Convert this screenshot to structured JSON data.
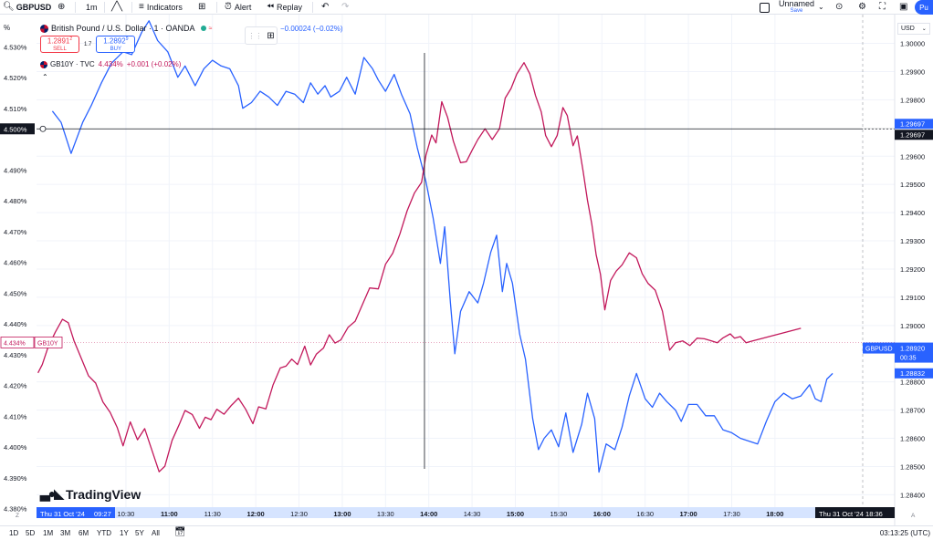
{
  "toolbar": {
    "symbol": "GBPUSD",
    "interval": "1m",
    "indicators_label": "Indicators",
    "alert_label": "Alert",
    "replay_label": "Replay",
    "layout_name": "Unnamed",
    "save_label": "Save",
    "publish_label": "Pu"
  },
  "legend": {
    "main_title": "British Pound / U.S. Dollar · 1 · OANDA",
    "sell_price": "1.2891",
    "sell_price_sup": "2",
    "sell_label": "SELL",
    "spread": "1.7",
    "buy_price": "1.2892",
    "buy_price_sup": "9",
    "buy_label": "BUY",
    "change_text": "−0.00024 (−0.02%)",
    "second_symbol": "GB10Y · TVC",
    "second_value": "4.434%",
    "second_change": "+0.001 (+0.02%)"
  },
  "left_scale_unit": "%",
  "right_scale_currency": "USD",
  "logo_text": "TradingView",
  "colors": {
    "usd_line": "#2962ff",
    "gb10y_line": "#c2185b",
    "crosshair": "#131722",
    "grid": "#f0f3fa"
  },
  "chart_data": {
    "type": "line",
    "left_axis": {
      "unit": "%",
      "ticks": [
        "4.530%",
        "4.520%",
        "4.510%",
        "4.490%",
        "4.480%",
        "4.470%",
        "4.460%",
        "4.450%",
        "4.440%",
        "4.430%",
        "4.420%",
        "4.410%",
        "4.400%",
        "4.390%",
        "4.380%"
      ],
      "tick_values": [
        4.53,
        4.52,
        4.51,
        4.49,
        4.48,
        4.47,
        4.46,
        4.45,
        4.44,
        4.43,
        4.42,
        4.41,
        4.4,
        4.39,
        4.38
      ],
      "range": [
        4.3805,
        4.5405
      ]
    },
    "right_axis": {
      "ticks": [
        "1.30000",
        "1.29900",
        "1.29800",
        "1.29600",
        "1.29500",
        "1.29400",
        "1.29300",
        "1.29200",
        "1.29100",
        "1.29000",
        "1.28800",
        "1.28700",
        "1.28600",
        "1.28500",
        "1.28400"
      ],
      "tick_values": [
        1.3,
        1.299,
        1.298,
        1.296,
        1.295,
        1.294,
        1.293,
        1.292,
        1.291,
        1.29,
        1.288,
        1.287,
        1.286,
        1.285,
        1.284
      ],
      "range": [
        1.28356,
        1.30102
      ]
    },
    "x_axis": {
      "ticks": [
        "10:30",
        "11:00",
        "11:30",
        "12:00",
        "12:30",
        "13:00",
        "13:30",
        "14:00",
        "14:30",
        "15:00",
        "15:30",
        "16:00",
        "16:30",
        "17:00",
        "17:30",
        "18:00"
      ],
      "tick_minutes": [
        630,
        660,
        690,
        720,
        750,
        780,
        810,
        840,
        870,
        900,
        930,
        960,
        990,
        1020,
        1050,
        1080
      ],
      "bold_ticks": [
        "11:00",
        "12:00",
        "13:00",
        "14:00",
        "15:00",
        "16:00",
        "17:00",
        "18:00"
      ],
      "range_minutes": [
        568,
        1163
      ],
      "start_label_date": "Thu 31 Oct '24",
      "start_label_time": "09:27",
      "end_label": "Thu 31 Oct '24  18:36"
    },
    "series": [
      {
        "name": "GBPUSD",
        "axis": "right",
        "points": [
          [
            579,
            1.2976
          ],
          [
            585,
            1.2972
          ],
          [
            592,
            1.2961
          ],
          [
            600,
            1.2972
          ],
          [
            606,
            1.2978
          ],
          [
            613,
            1.2986
          ],
          [
            620,
            1.2993
          ],
          [
            628,
            1.2997
          ],
          [
            634,
            1.2996
          ],
          [
            641,
            1.3004
          ],
          [
            646,
            1.3008
          ],
          [
            652,
            1.3001
          ],
          [
            659,
            1.2997
          ],
          [
            666,
            1.2988
          ],
          [
            671,
            1.2992
          ],
          [
            678,
            1.2985
          ],
          [
            684,
            1.2991
          ],
          [
            690,
            1.2994
          ],
          [
            696,
            1.2992
          ],
          [
            702,
            1.2991
          ],
          [
            708,
            1.2985
          ],
          [
            711,
            1.2977
          ],
          [
            717,
            1.2979
          ],
          [
            723,
            1.2983
          ],
          [
            729,
            1.2981
          ],
          [
            735,
            1.2978
          ],
          [
            741,
            1.2983
          ],
          [
            747,
            1.2982
          ],
          [
            753,
            1.2979
          ],
          [
            758,
            1.2986
          ],
          [
            763,
            1.2982
          ],
          [
            768,
            1.2985
          ],
          [
            772,
            1.2981
          ],
          [
            778,
            1.2983
          ],
          [
            783,
            1.2988
          ],
          [
            789,
            1.2982
          ],
          [
            795,
            1.2995
          ],
          [
            801,
            1.2991
          ],
          [
            805,
            1.2987
          ],
          [
            810,
            1.2983
          ],
          [
            816,
            1.2989
          ],
          [
            821,
            1.2982
          ],
          [
            827,
            1.2975
          ],
          [
            832,
            1.2963
          ],
          [
            838,
            1.2951
          ],
          [
            843,
            1.2938
          ],
          [
            848,
            1.2922
          ],
          [
            851,
            1.2935
          ],
          [
            855,
            1.2908
          ],
          [
            858,
            1.289
          ],
          [
            862,
            1.2905
          ],
          [
            868,
            1.2912
          ],
          [
            874,
            1.2908
          ],
          [
            878,
            1.2915
          ],
          [
            883,
            1.2926
          ],
          [
            887,
            1.2932
          ],
          [
            891,
            1.2912
          ],
          [
            894,
            1.2922
          ],
          [
            898,
            1.2915
          ],
          [
            903,
            1.2897
          ],
          [
            907,
            1.2888
          ],
          [
            912,
            1.2867
          ],
          [
            916,
            1.2856
          ],
          [
            920,
            1.286
          ],
          [
            925,
            1.2863
          ],
          [
            930,
            1.2857
          ],
          [
            935,
            1.2869
          ],
          [
            940,
            1.2855
          ],
          [
            946,
            1.2865
          ],
          [
            950,
            1.2876
          ],
          [
            955,
            1.2867
          ],
          [
            958,
            1.2848
          ],
          [
            963,
            1.2858
          ],
          [
            969,
            1.2856
          ],
          [
            974,
            1.2864
          ],
          [
            979,
            1.2875
          ],
          [
            984,
            1.2883
          ],
          [
            990,
            1.2874
          ],
          [
            995,
            1.2871
          ],
          [
            1000,
            1.2876
          ],
          [
            1005,
            1.2873
          ],
          [
            1011,
            1.287
          ],
          [
            1015,
            1.2866
          ],
          [
            1020,
            1.2872
          ],
          [
            1026,
            1.2872
          ],
          [
            1032,
            1.2868
          ],
          [
            1038,
            1.2868
          ],
          [
            1044,
            1.2863
          ],
          [
            1050,
            1.2862
          ],
          [
            1056,
            1.286
          ],
          [
            1062,
            1.2859
          ],
          [
            1068,
            1.2858
          ],
          [
            1074,
            1.2866
          ],
          [
            1080,
            1.2873
          ],
          [
            1086,
            1.2876
          ],
          [
            1092,
            1.2874
          ],
          [
            1098,
            1.2875
          ],
          [
            1104,
            1.2879
          ],
          [
            1108,
            1.2874
          ],
          [
            1112,
            1.2873
          ],
          [
            1116,
            1.2881
          ],
          [
            1120,
            1.2883
          ]
        ]
      },
      {
        "name": "GB10Y",
        "axis": "left",
        "points": [
          [
            569,
            4.4241
          ],
          [
            572,
            4.4268
          ],
          [
            576,
            4.4324
          ],
          [
            581,
            4.4373
          ],
          [
            586,
            4.4415
          ],
          [
            590,
            4.4404
          ],
          [
            594,
            4.4345
          ],
          [
            599,
            4.4289
          ],
          [
            604,
            4.4232
          ],
          [
            609,
            4.4208
          ],
          [
            614,
            4.4147
          ],
          [
            619,
            4.4113
          ],
          [
            624,
            4.4063
          ],
          [
            628,
            4.4004
          ],
          [
            633,
            4.4082
          ],
          [
            638,
            4.4024
          ],
          [
            643,
            4.406
          ],
          [
            648,
            4.399
          ],
          [
            653,
            4.392
          ],
          [
            657,
            4.3938
          ],
          [
            662,
            4.4022
          ],
          [
            667,
            4.4074
          ],
          [
            671,
            4.4119
          ],
          [
            676,
            4.4106
          ],
          [
            681,
            4.4061
          ],
          [
            685,
            4.4097
          ],
          [
            689,
            4.4089
          ],
          [
            693,
            4.4123
          ],
          [
            698,
            4.4107
          ],
          [
            703,
            4.4135
          ],
          [
            708,
            4.4159
          ],
          [
            713,
            4.4123
          ],
          [
            718,
            4.4076
          ],
          [
            722,
            4.4131
          ],
          [
            727,
            4.4124
          ],
          [
            732,
            4.4202
          ],
          [
            737,
            4.4257
          ],
          [
            741,
            4.4263
          ],
          [
            745,
            4.4286
          ],
          [
            749,
            4.4268
          ],
          [
            754,
            4.4328
          ],
          [
            758,
            4.4267
          ],
          [
            762,
            4.4302
          ],
          [
            767,
            4.4322
          ],
          [
            771,
            4.4365
          ],
          [
            775,
            4.4338
          ],
          [
            779,
            4.4348
          ],
          [
            784,
            4.4389
          ],
          [
            789,
            4.4409
          ],
          [
            794,
            4.4463
          ],
          [
            799,
            4.4517
          ],
          [
            805,
            4.4514
          ],
          [
            810,
            4.4594
          ],
          [
            815,
            4.463
          ],
          [
            820,
            4.4693
          ],
          [
            825,
            4.4768
          ],
          [
            830,
            4.4825
          ],
          [
            835,
            4.486
          ],
          [
            838,
            4.4948
          ],
          [
            842,
            4.5014
          ],
          [
            845,
            4.4988
          ],
          [
            849,
            4.5122
          ],
          [
            853,
            4.5071
          ],
          [
            857,
            4.4994
          ],
          [
            862,
            4.4924
          ],
          [
            866,
            4.4927
          ],
          [
            870,
            4.4964
          ],
          [
            874,
            4.4999
          ],
          [
            879,
            4.5034
          ],
          [
            884,
            4.4999
          ],
          [
            889,
            4.5034
          ],
          [
            893,
            4.5134
          ],
          [
            897,
            4.5165
          ],
          [
            901,
            4.5212
          ],
          [
            906,
            4.5249
          ],
          [
            910,
            4.5213
          ],
          [
            914,
            4.5142
          ],
          [
            918,
            4.5089
          ],
          [
            921,
            4.5012
          ],
          [
            925,
            4.4976
          ],
          [
            929,
            4.5012
          ],
          [
            933,
            4.5103
          ],
          [
            936,
            4.5077
          ],
          [
            940,
            4.4979
          ],
          [
            943,
            4.5011
          ],
          [
            947,
            4.4895
          ],
          [
            950,
            4.4802
          ],
          [
            953,
            4.4726
          ],
          [
            956,
            4.4625
          ],
          [
            959,
            4.4562
          ],
          [
            962,
            4.4446
          ],
          [
            966,
            4.4541
          ],
          [
            970,
            4.4572
          ],
          [
            974,
            4.4592
          ],
          [
            979,
            4.4631
          ],
          [
            984,
            4.4615
          ],
          [
            988,
            4.4563
          ],
          [
            992,
            4.4532
          ],
          [
            997,
            4.451
          ],
          [
            1002,
            4.4442
          ],
          [
            1007,
            4.4315
          ],
          [
            1011,
            4.4339
          ],
          [
            1016,
            4.4345
          ],
          [
            1021,
            4.433
          ],
          [
            1026,
            4.4354
          ],
          [
            1031,
            4.4352
          ],
          [
            1036,
            4.4345
          ],
          [
            1040,
            4.4339
          ],
          [
            1044,
            4.4355
          ],
          [
            1049,
            4.4368
          ],
          [
            1052,
            4.4354
          ],
          [
            1056,
            4.4359
          ],
          [
            1060,
            4.4339
          ],
          [
            1063,
            4.4343
          ],
          [
            1098,
            4.4386
          ]
        ]
      }
    ],
    "crosshair": {
      "minute": 837,
      "left_value_label": "4.500%",
      "right_value_label": "1.29697"
    },
    "price_labels": [
      {
        "axis": "right",
        "value": 1.29697,
        "text": "1.29697",
        "color": "#2962ff"
      },
      {
        "axis": "right",
        "value": 1.2892,
        "text": "GBPUSD",
        "text2": "1.28920",
        "text3": "00:35",
        "color": "#2962ff"
      },
      {
        "axis": "right",
        "value": 1.28832,
        "text": "1.28832",
        "color": "#2962ff"
      },
      {
        "axis": "left",
        "value": 4.434,
        "text": "4.434%",
        "text2": "GB10Y",
        "color": "#c2185b"
      }
    ]
  },
  "bottom_bar": {
    "ranges": [
      "1D",
      "5D",
      "1M",
      "3M",
      "6M",
      "YTD",
      "1Y",
      "5Y",
      "All"
    ],
    "clock": "03:13:25 (UTC)"
  }
}
